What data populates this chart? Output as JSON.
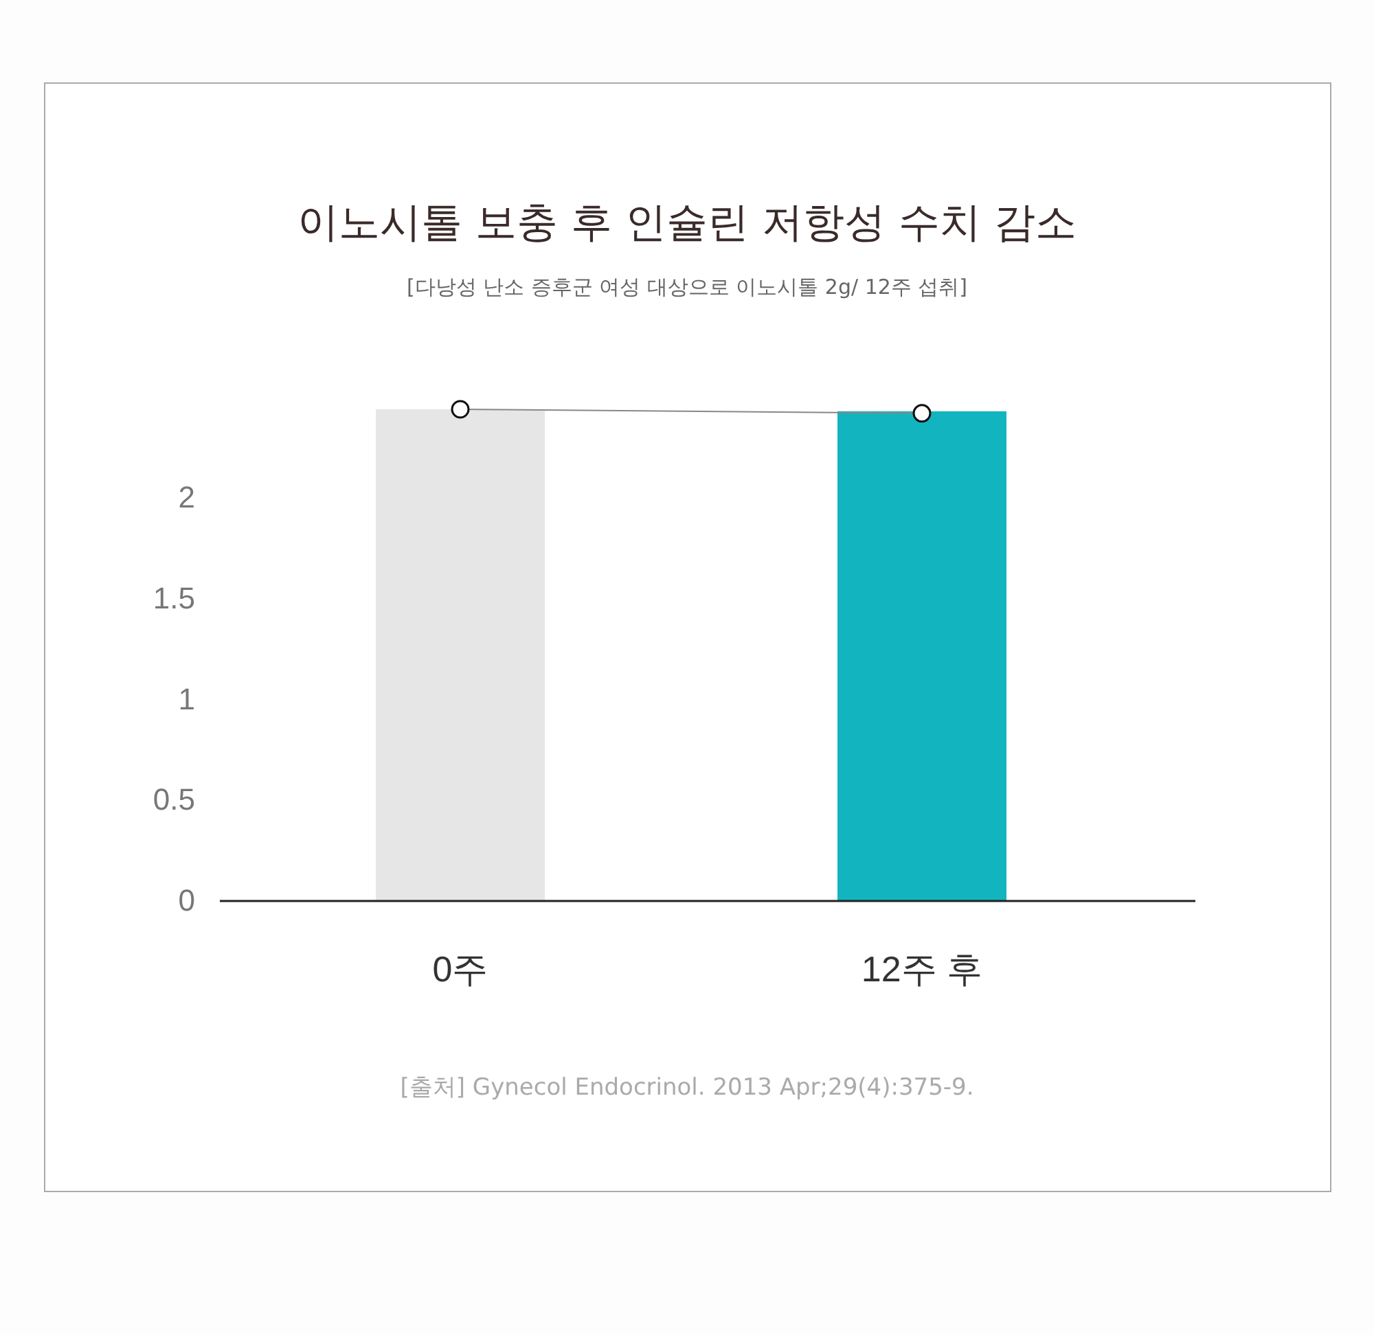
{
  "chart_data": {
    "type": "bar",
    "title": "이노시톨 보충 후 인슐린 저항성 수치 감소",
    "subtitle": "[다낭성 난소 증후군 여성 대상으로 이노시톨 2g/ 12주 섭취]",
    "categories": [
      "0주",
      "12주 후"
    ],
    "series": [
      {
        "colors": [
          "#e6e6e6",
          "#12b5bf"
        ],
        "values": [
          2.44,
          2.43
        ]
      },
      {
        "type": "line",
        "color": "#888888",
        "values": [
          2.44,
          2.42
        ],
        "marker": "circle"
      }
    ],
    "ylim": [
      0,
      2.44
    ],
    "yticks": [
      0,
      0.5,
      1,
      1.5,
      2
    ],
    "grid": false,
    "annotations": [
      "[출처] Gynecol Endocrinol. 2013 Apr;29(4):375-9."
    ]
  }
}
